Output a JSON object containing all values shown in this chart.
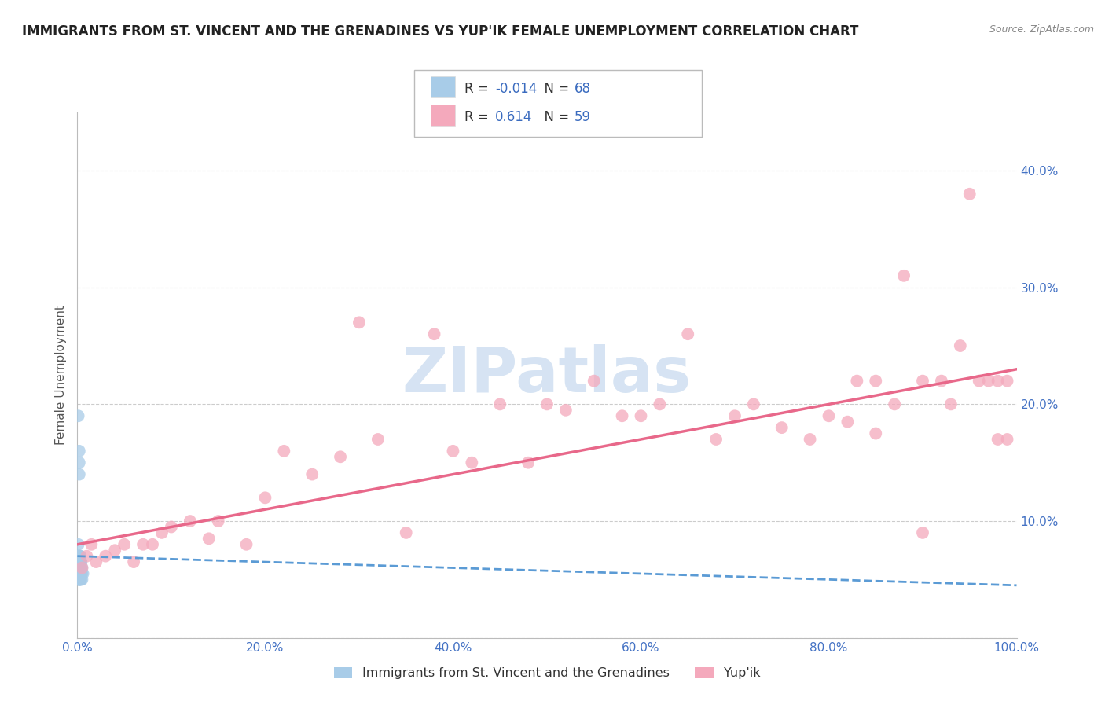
{
  "title": "IMMIGRANTS FROM ST. VINCENT AND THE GRENADINES VS YUP'IK FEMALE UNEMPLOYMENT CORRELATION CHART",
  "source_text": "Source: ZipAtlas.com",
  "ylabel": "Female Unemployment",
  "legend_labels": [
    "Immigrants from St. Vincent and the Grenadines",
    "Yup'ik"
  ],
  "R_blue": -0.014,
  "N_blue": 68,
  "R_pink": 0.614,
  "N_pink": 59,
  "blue_color": "#a8cce8",
  "pink_color": "#f4a9bc",
  "blue_line_color": "#5b9bd5",
  "pink_line_color": "#e8688a",
  "legend_text_color": "#3a6bbf",
  "legend_label_dark": "#444444",
  "watermark_color": "#ccddf0",
  "title_color": "#222222",
  "tick_color": "#4472c4",
  "ylabel_color": "#555555",
  "xlim": [
    0.0,
    1.0
  ],
  "ylim": [
    0.0,
    0.45
  ],
  "x_ticks": [
    0.0,
    0.2,
    0.4,
    0.6,
    0.8,
    1.0
  ],
  "y_ticks": [
    0.0,
    0.1,
    0.2,
    0.3,
    0.4
  ],
  "blue_x": [
    0.001,
    0.001,
    0.002,
    0.002,
    0.002,
    0.002,
    0.002,
    0.003,
    0.003,
    0.003,
    0.003,
    0.003,
    0.004,
    0.004,
    0.004,
    0.004,
    0.005,
    0.005,
    0.005,
    0.006,
    0.001,
    0.001,
    0.002,
    0.002,
    0.002,
    0.002,
    0.003,
    0.003,
    0.004,
    0.004,
    0.001,
    0.001,
    0.002,
    0.002,
    0.003,
    0.003,
    0.001,
    0.002,
    0.001,
    0.002,
    0.001,
    0.002,
    0.002,
    0.003,
    0.001,
    0.002,
    0.003,
    0.001,
    0.002,
    0.003,
    0.001,
    0.001,
    0.002,
    0.002,
    0.003,
    0.001,
    0.002,
    0.003,
    0.001,
    0.002,
    0.001,
    0.002,
    0.001,
    0.002,
    0.001,
    0.002,
    0.001,
    0.002
  ],
  "blue_y": [
    0.19,
    0.08,
    0.16,
    0.15,
    0.14,
    0.06,
    0.07,
    0.065,
    0.07,
    0.055,
    0.06,
    0.05,
    0.065,
    0.06,
    0.05,
    0.055,
    0.06,
    0.055,
    0.05,
    0.055,
    0.07,
    0.06,
    0.065,
    0.055,
    0.05,
    0.06,
    0.07,
    0.055,
    0.06,
    0.065,
    0.07,
    0.065,
    0.05,
    0.055,
    0.05,
    0.065,
    0.055,
    0.06,
    0.065,
    0.05,
    0.055,
    0.065,
    0.055,
    0.06,
    0.05,
    0.055,
    0.05,
    0.065,
    0.055,
    0.06,
    0.065,
    0.055,
    0.05,
    0.065,
    0.055,
    0.06,
    0.065,
    0.055,
    0.06,
    0.065,
    0.05,
    0.055,
    0.06,
    0.065,
    0.055,
    0.05,
    0.065,
    0.055
  ],
  "pink_x": [
    0.005,
    0.01,
    0.015,
    0.02,
    0.03,
    0.04,
    0.05,
    0.06,
    0.07,
    0.08,
    0.09,
    0.1,
    0.12,
    0.14,
    0.15,
    0.18,
    0.2,
    0.22,
    0.25,
    0.28,
    0.3,
    0.32,
    0.35,
    0.38,
    0.4,
    0.42,
    0.45,
    0.48,
    0.5,
    0.52,
    0.55,
    0.58,
    0.6,
    0.62,
    0.65,
    0.68,
    0.7,
    0.72,
    0.75,
    0.78,
    0.8,
    0.82,
    0.83,
    0.85,
    0.85,
    0.87,
    0.88,
    0.9,
    0.9,
    0.92,
    0.93,
    0.94,
    0.95,
    0.96,
    0.97,
    0.98,
    0.98,
    0.99,
    0.99
  ],
  "pink_y": [
    0.06,
    0.07,
    0.08,
    0.065,
    0.07,
    0.075,
    0.08,
    0.065,
    0.08,
    0.08,
    0.09,
    0.095,
    0.1,
    0.085,
    0.1,
    0.08,
    0.12,
    0.16,
    0.14,
    0.155,
    0.27,
    0.17,
    0.09,
    0.26,
    0.16,
    0.15,
    0.2,
    0.15,
    0.2,
    0.195,
    0.22,
    0.19,
    0.19,
    0.2,
    0.26,
    0.17,
    0.19,
    0.2,
    0.18,
    0.17,
    0.19,
    0.185,
    0.22,
    0.175,
    0.22,
    0.2,
    0.31,
    0.09,
    0.22,
    0.22,
    0.2,
    0.25,
    0.38,
    0.22,
    0.22,
    0.22,
    0.17,
    0.22,
    0.17
  ],
  "pink_line_start_y": 0.08,
  "pink_line_end_y": 0.23,
  "blue_line_start_y": 0.07,
  "blue_line_end_y": 0.045
}
